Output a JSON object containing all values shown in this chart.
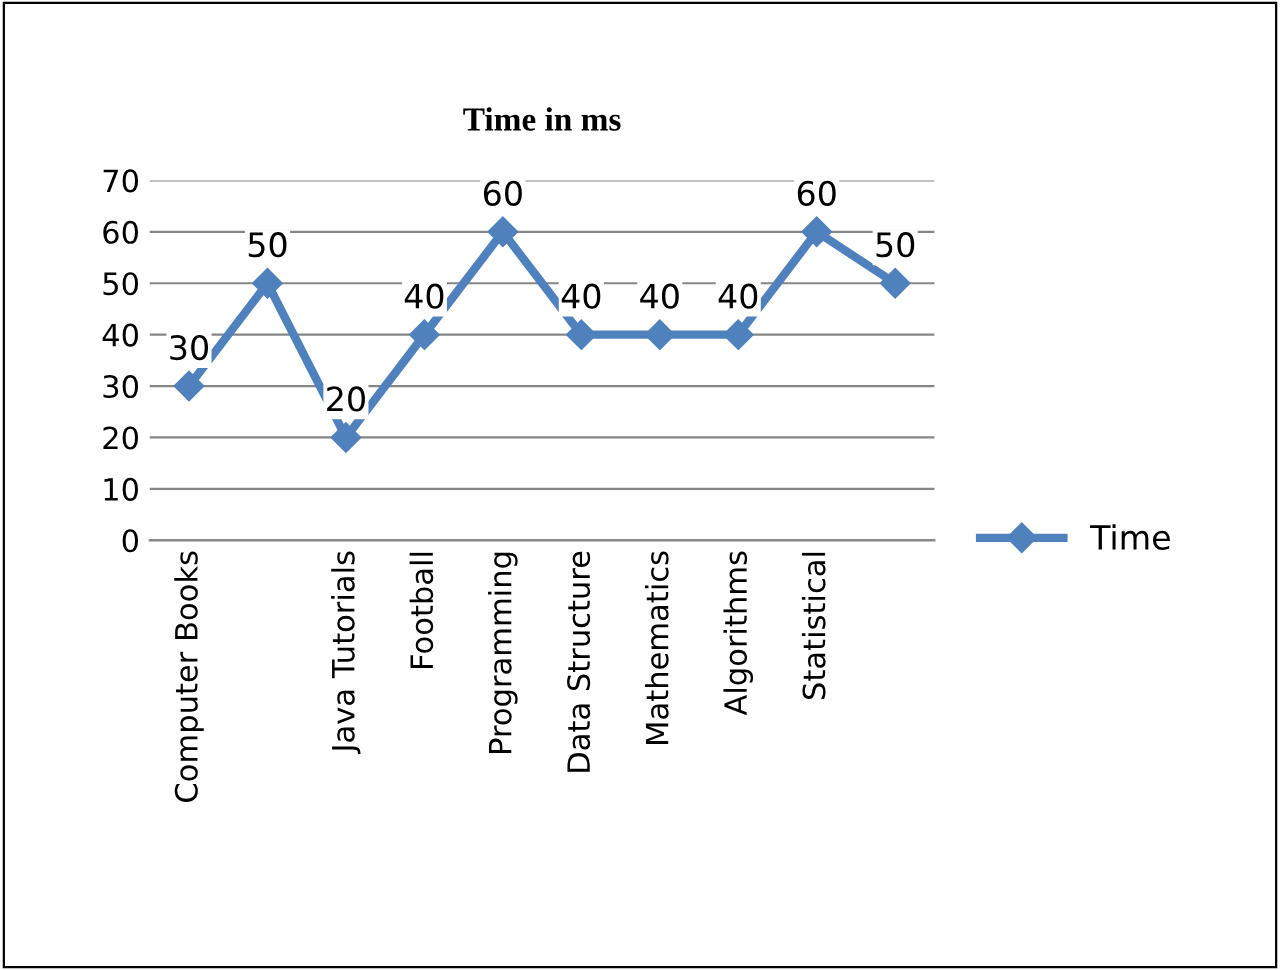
{
  "chart_data": {
    "type": "line",
    "title": "Time in ms",
    "categories": [
      "Computer Books",
      null,
      "Java Tutorials",
      "Football",
      "Programming",
      "Data Structure",
      "Mathematics",
      "Algorithms",
      "Statistical",
      null
    ],
    "series": [
      {
        "name": "Time",
        "color": "#4f81bd",
        "values": [
          30,
          50,
          20,
          40,
          60,
          40,
          40,
          40,
          60,
          50
        ]
      }
    ],
    "ylim": [
      0,
      70
    ],
    "yticks": [
      0,
      10,
      20,
      30,
      40,
      50,
      60,
      70
    ],
    "grid": "y",
    "legend": "right",
    "marker": "diamond",
    "line_style": "solid",
    "data_labels": true
  }
}
